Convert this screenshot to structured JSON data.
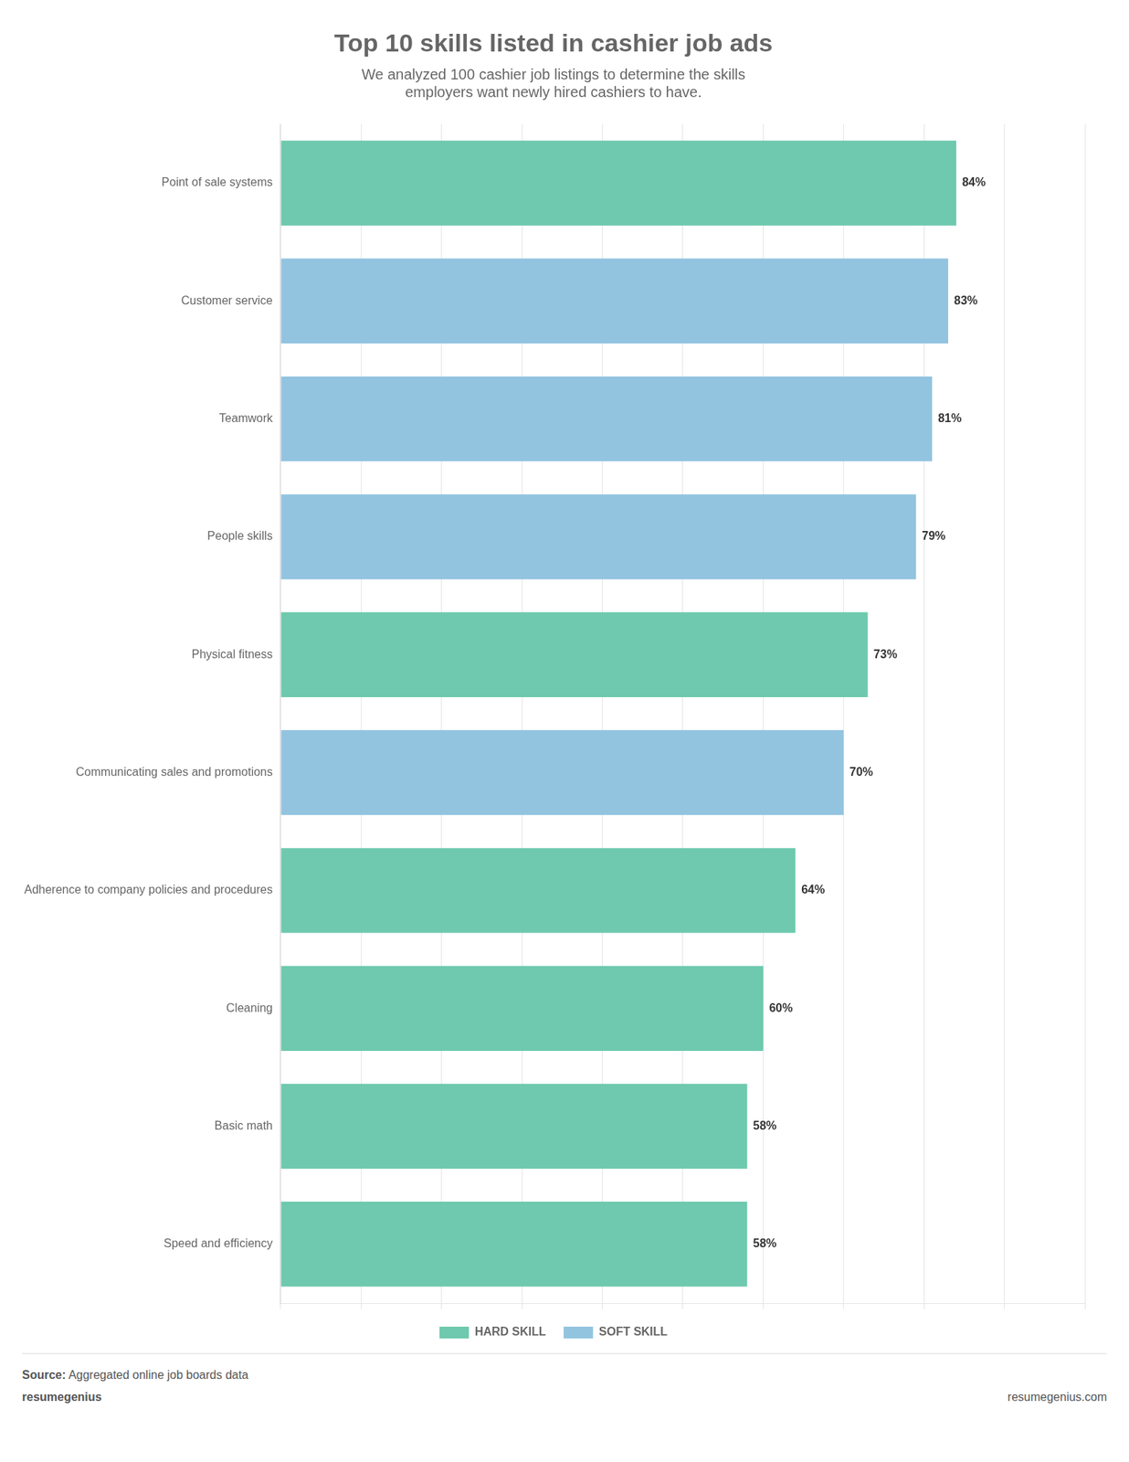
{
  "chart_data": {
    "type": "bar",
    "orientation": "horizontal",
    "title": "Top 10 skills listed in cashier job ads",
    "subtitle": "We analyzed 100 cashier job listings to determine the skills\nemployers want newly hired cashiers to have.",
    "categories": [
      "Point of sale systems",
      "Customer service",
      "Teamwork",
      "People skills",
      "Physical fitness",
      "Communicating sales and promotions",
      "Adherence to company policies and procedures",
      "Cleaning",
      "Basic math",
      "Speed and efficiency"
    ],
    "series": [
      {
        "name": "HARD SKILL",
        "color": "#6ec9ae",
        "values": [
          84,
          null,
          null,
          null,
          73,
          null,
          64,
          60,
          58,
          58
        ],
        "value_labels": [
          "84%",
          null,
          null,
          null,
          "73%",
          null,
          "64%",
          "60%",
          "58%",
          "58%"
        ]
      },
      {
        "name": "SOFT SKILL",
        "color": "#92c4e0",
        "values": [
          null,
          83,
          81,
          79,
          null,
          70,
          null,
          null,
          null,
          null
        ],
        "value_labels": [
          null,
          "83%",
          "81%",
          "79%",
          null,
          "70%",
          null,
          null,
          null,
          null
        ]
      }
    ],
    "xlim": [
      0,
      100
    ],
    "xticks": [
      0,
      10,
      20,
      30,
      40,
      50,
      60,
      70,
      80,
      90,
      100
    ],
    "grid": true,
    "tick_labels": "y",
    "data_labels": true,
    "legend": "bottom",
    "annotations": [
      "Source:",
      "Aggregated online job boards data",
      "resume",
      "genius",
      "resumegenius.com"
    ]
  }
}
